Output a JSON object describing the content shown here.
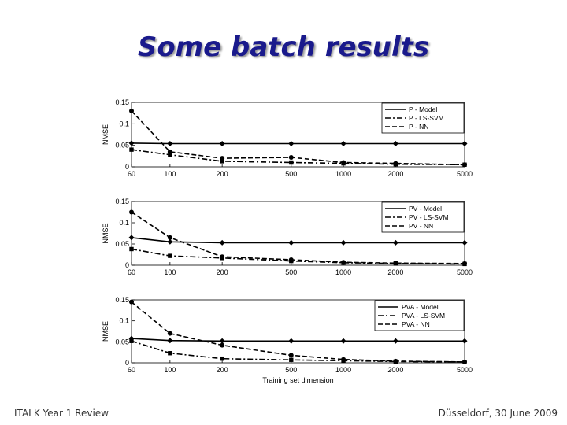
{
  "slide": {
    "title": "Some batch results",
    "footer_left": "ITALK Year 1 Review",
    "footer_right": "Düsseldorf, 30 June 2009"
  },
  "style": {
    "title_color": "#1a1a8c",
    "line_color": "#000000"
  },
  "chart_data": [
    {
      "type": "line",
      "x": [
        60,
        100,
        200,
        500,
        1000,
        2000,
        5000
      ],
      "x_tick_labels": [
        "60",
        "100",
        "200",
        "500",
        "1000",
        "2000",
        "5000"
      ],
      "xscale": "log",
      "ylabel": "NMSE",
      "xlabel": "",
      "ylim": [
        0,
        0.15
      ],
      "y_ticks": [
        "0",
        "0.05",
        "0.1",
        "0.15"
      ],
      "legend_position": "top-right",
      "series": [
        {
          "name": "P - Model",
          "style": "solid",
          "marker": "diamond",
          "values": [
            0.055,
            0.054,
            0.054,
            0.054,
            0.054,
            0.054,
            0.054
          ]
        },
        {
          "name": "P - LS-SVM",
          "style": "dashdot",
          "marker": "square",
          "values": [
            0.04,
            0.028,
            0.013,
            0.01,
            0.008,
            0.006,
            0.005
          ]
        },
        {
          "name": "P - NN",
          "style": "dashed",
          "marker": "circle",
          "values": [
            0.13,
            0.035,
            0.02,
            0.022,
            0.01,
            0.008,
            0.005
          ]
        }
      ]
    },
    {
      "type": "line",
      "x": [
        60,
        100,
        200,
        500,
        1000,
        2000,
        5000
      ],
      "x_tick_labels": [
        "60",
        "100",
        "200",
        "500",
        "1000",
        "2000",
        "5000"
      ],
      "xscale": "log",
      "ylabel": "NMSE",
      "xlabel": "",
      "ylim": [
        0,
        0.15
      ],
      "y_ticks": [
        "0",
        "0.05",
        "0.1",
        "0.15"
      ],
      "legend_position": "top-right",
      "series": [
        {
          "name": "PV - Model",
          "style": "solid",
          "marker": "diamond",
          "values": [
            0.065,
            0.055,
            0.053,
            0.053,
            0.053,
            0.053,
            0.053
          ]
        },
        {
          "name": "PV - LS-SVM",
          "style": "dashdot",
          "marker": "square",
          "values": [
            0.038,
            0.022,
            0.017,
            0.01,
            0.006,
            0.004,
            0.003
          ]
        },
        {
          "name": "PV - NN",
          "style": "dashed",
          "marker": "circle",
          "values": [
            0.125,
            0.065,
            0.02,
            0.013,
            0.007,
            0.005,
            0.004
          ]
        }
      ]
    },
    {
      "type": "line",
      "x": [
        60,
        100,
        200,
        500,
        1000,
        2000,
        5000
      ],
      "x_tick_labels": [
        "60",
        "100",
        "200",
        "500",
        "1000",
        "2000",
        "5000"
      ],
      "xscale": "log",
      "ylabel": "NMSE",
      "xlabel": "Training set dimension",
      "ylim": [
        0,
        0.15
      ],
      "y_ticks": [
        "0",
        "0.05",
        "0.1",
        "0.15"
      ],
      "legend_position": "top-right",
      "series": [
        {
          "name": "PVA - Model",
          "style": "solid",
          "marker": "diamond",
          "values": [
            0.058,
            0.053,
            0.052,
            0.052,
            0.052,
            0.052,
            0.052
          ]
        },
        {
          "name": "PVA - LS-SVM",
          "style": "dashdot",
          "marker": "square",
          "values": [
            0.052,
            0.023,
            0.01,
            0.007,
            0.005,
            0.003,
            0.002
          ]
        },
        {
          "name": "PVA - NN",
          "style": "dashed",
          "marker": "circle",
          "values": [
            0.145,
            0.07,
            0.042,
            0.018,
            0.008,
            0.004,
            0.002
          ]
        }
      ]
    }
  ]
}
